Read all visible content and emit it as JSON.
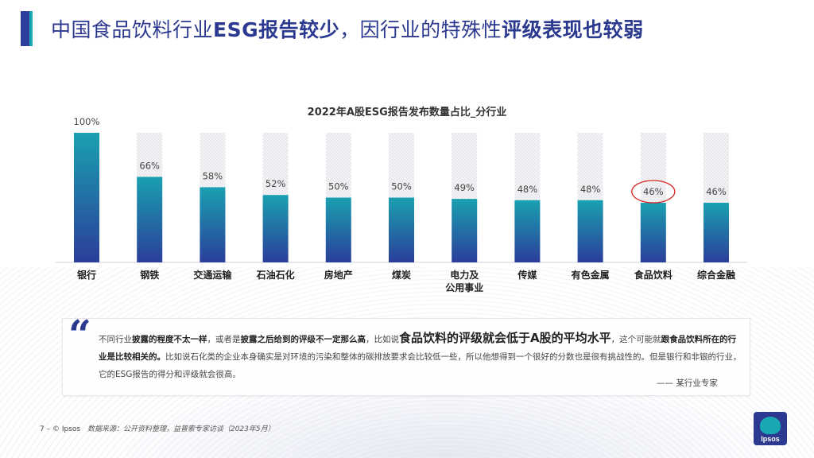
{
  "header": {
    "title_normal": "中国食品饮料行业",
    "title_bold_1": "ESG报告较少",
    "title_normal_2": "，因行业的特殊性",
    "title_bold_2": "评级表现也较弱"
  },
  "colors": {
    "primary": "#2b3990",
    "accent": "#1aa8b4",
    "bar_top": "#1aa0b0",
    "bar_bottom": "#2b3e9a",
    "highlight_circle": "#d62828"
  },
  "chart_data": {
    "type": "bar",
    "title": "2022年A股ESG报告发布数量占比_分行业",
    "categories": [
      "银行",
      "钢铁",
      "交通运输",
      "石油石化",
      "房地产",
      "煤炭",
      "电力及公用事业",
      "传媒",
      "有色金属",
      "食品饮料",
      "综合金融"
    ],
    "category_lines": [
      [
        "银行"
      ],
      [
        "钢铁"
      ],
      [
        "交通运输"
      ],
      [
        "石油石化"
      ],
      [
        "房地产"
      ],
      [
        "煤炭"
      ],
      [
        "电力及",
        "公用事业"
      ],
      [
        "传媒"
      ],
      [
        "有色金属"
      ],
      [
        "食品饮料"
      ],
      [
        "综合金融"
      ]
    ],
    "values": [
      100,
      66,
      58,
      52,
      50,
      50,
      49,
      48,
      48,
      46,
      46
    ],
    "value_labels": [
      "100%",
      "66%",
      "58%",
      "52%",
      "50%",
      "50%",
      "49%",
      "48%",
      "48%",
      "46%",
      "46%"
    ],
    "ylim": [
      0,
      100
    ],
    "background_bars": "hatched to 100%",
    "highlighted_category": "食品饮料",
    "grid": false,
    "legend": "none"
  },
  "quote": {
    "mark": "“",
    "seg1": "不同行业",
    "seg2": "披露的程度不太一样",
    "seg3": "，或者是",
    "seg4": "披露之后给到的评级不一定那么高",
    "seg5": "，比如说",
    "seg6": "食品饮料的评级就会低于A股的平均水平",
    "seg7": "，这个可能就",
    "seg8": "跟食品饮料所在的行业是比较相关的。",
    "seg9": "比如说石化类的企业本身确实是对环境的污染和整体的碳排放要求会比较低一些，所以他想得到一个很好的分数也是很有挑战性的。但是银行和非银的行业，它的ESG报告的得分和评级就会很高。",
    "author": "—— 某行业专家"
  },
  "footer": {
    "page": "7 –",
    "copyright": "© Ipsos",
    "source": "数据来源：公开资料整理，益普索专家访谈（2023年5月）"
  },
  "logo": {
    "text": "Ipsos"
  }
}
